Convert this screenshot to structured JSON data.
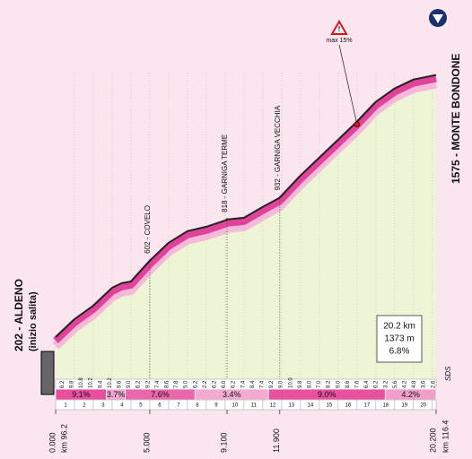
{
  "chart_data": {
    "type": "profile",
    "x": [
      0,
      1,
      2,
      3,
      3.5,
      4,
      5,
      6,
      7,
      8,
      9,
      9.1,
      10,
      11,
      11.9,
      13,
      14,
      15,
      16,
      17,
      18,
      19,
      20.2
    ],
    "values": [
      202,
      296,
      367,
      460,
      484,
      493,
      602,
      696,
      757,
      780,
      813,
      818,
      827,
      884,
      932,
      1048,
      1142,
      1236,
      1330,
      1434,
      1504,
      1551,
      1575
    ],
    "xlim": [
      0,
      20.2
    ],
    "ylim": [
      0,
      1700
    ],
    "xticks": [
      1,
      2,
      3,
      4,
      5,
      6,
      7,
      8,
      9,
      10,
      11,
      12,
      13,
      14,
      15,
      16,
      17,
      18,
      19,
      20
    ],
    "start_label": "202 - ALDENO",
    "start_note": "(inizio salita)",
    "finish_label": "1575 - MONTE BONDONE",
    "waypoints": [
      {
        "km": 5,
        "label": "602 - COVELO"
      },
      {
        "km": 9.1,
        "label": "818 - GARNIGA TERME"
      },
      {
        "km": 11.9,
        "label": "932 - GARNIGA VECCHIA"
      }
    ],
    "max_gradient": {
      "km": 16,
      "label": "max 15%"
    },
    "summary": [
      "20.2 km",
      "1373 m",
      "6.8%"
    ],
    "segments": [
      {
        "from": 0,
        "to": 2.7,
        "grade": 9.1,
        "label": "9.1%"
      },
      {
        "from": 2.7,
        "to": 3.7,
        "grade": 3.7,
        "label": "3.7%"
      },
      {
        "from": 3.7,
        "to": 7.4,
        "grade": 7.6,
        "label": "7.6%"
      },
      {
        "from": 7.4,
        "to": 11.3,
        "grade": 3.4,
        "label": "3.4%"
      },
      {
        "from": 11.3,
        "to": 17.5,
        "grade": 9.0,
        "label": "9.0%"
      },
      {
        "from": 17.5,
        "to": 20.2,
        "grade": 4.2,
        "label": "4.2%"
      }
    ],
    "gradient_labels": [
      "6.2",
      "9.8",
      "10.8",
      "10.2",
      "9.4",
      "10.2",
      "9.6",
      "9.0",
      "6.2",
      "9.2",
      "7.4",
      "8.6",
      "7.8",
      "5.0",
      "6.2",
      "2.2",
      "6.2",
      "6.0",
      "6.2",
      "7.4",
      "8.4",
      "7.4",
      "9.2",
      "9.0",
      "10.0",
      "9.8",
      "8.0",
      "7.0",
      "8.2",
      "9.0",
      "8.6",
      "7.6",
      "6.4",
      "6.2",
      "3.2",
      "5.6",
      "4.2",
      "4.8",
      "3.6",
      "2.6"
    ],
    "km_marks": [
      {
        "value": 0,
        "label": "0.000"
      },
      {
        "value": 5,
        "label": "5.000"
      },
      {
        "value": 9.1,
        "label": "9.100"
      },
      {
        "value": 11.9,
        "label": "11.900"
      },
      {
        "value": 20.2,
        "label": "20.200"
      }
    ],
    "start_km": "km 96.2",
    "finish_km": "km 116.4",
    "credit": "SDS"
  }
}
